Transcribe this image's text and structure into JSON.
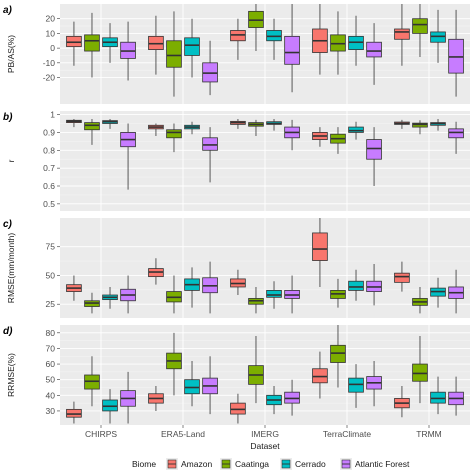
{
  "chart_data": {
    "type": "boxplot",
    "categories": [
      "CHIRPS",
      "ERA5-Land",
      "IMERG",
      "TerraClimate",
      "TRMM"
    ],
    "xlabel": "Dataset",
    "legend": {
      "title": "Biome",
      "position": "bottom",
      "entries": [
        "Amazon",
        "Caatinga",
        "Cerrado",
        "Atlantic Forest"
      ],
      "colors": [
        "#f8766d",
        "#7cae00",
        "#00bfc4",
        "#c77cff"
      ]
    },
    "panels": [
      {
        "tag": "a)",
        "ylabel": "PB/AS(%)",
        "ylim": [
          -38,
          30
        ],
        "yticks": [
          -20,
          -10,
          0,
          10,
          20
        ],
        "boxes": [
          [
            [
              -12,
              1,
              4,
              8,
              18
            ],
            [
              -20,
              -2,
              5,
              9,
              24
            ],
            [
              -10,
              1,
              4,
              7,
              17
            ],
            [
              -22,
              -7,
              -2,
              4,
              18
            ]
          ],
          [
            [
              -18,
              -1,
              3,
              8,
              22
            ],
            [
              -33,
              -13,
              -5,
              5,
              25
            ],
            [
              -20,
              -5,
              2,
              7,
              20
            ],
            [
              -32,
              -23,
              -17,
              -10,
              5
            ]
          ],
          [
            [
              -8,
              5,
              9,
              12,
              20
            ],
            [
              -2,
              14,
              19,
              25,
              30
            ],
            [
              -8,
              5,
              8,
              12,
              20
            ],
            [
              -30,
              -11,
              -3,
              8,
              30
            ]
          ],
          [
            [
              -18,
              -3,
              5,
              13,
              30
            ],
            [
              -18,
              -2,
              3,
              9,
              25
            ],
            [
              -12,
              -1,
              4,
              8,
              22
            ],
            [
              -25,
              -6,
              -2,
              4,
              17
            ]
          ],
          [
            [
              -12,
              6,
              11,
              13,
              30
            ],
            [
              -6,
              10,
              16,
              20,
              30
            ],
            [
              -10,
              4,
              8,
              11,
              26
            ],
            [
              -33,
              -17,
              -6,
              6,
              26
            ]
          ]
        ]
      },
      {
        "tag": "b)",
        "ylabel": "r",
        "ylim": [
          0.46,
          1.02
        ],
        "yticks": [
          0.5,
          0.6,
          0.7,
          0.8,
          0.9,
          1.0
        ],
        "boxes": [
          [
            [
              0.93,
              0.955,
              0.962,
              0.968,
              0.975
            ],
            [
              0.83,
              0.915,
              0.94,
              0.955,
              0.975
            ],
            [
              0.92,
              0.95,
              0.96,
              0.966,
              0.975
            ],
            [
              0.58,
              0.82,
              0.86,
              0.9,
              0.95
            ]
          ],
          [
            [
              0.88,
              0.92,
              0.93,
              0.94,
              0.95
            ],
            [
              0.79,
              0.87,
              0.9,
              0.915,
              0.95
            ],
            [
              0.89,
              0.92,
              0.93,
              0.94,
              0.96
            ],
            [
              0.62,
              0.8,
              0.83,
              0.87,
              0.93
            ]
          ],
          [
            [
              0.92,
              0.945,
              0.955,
              0.962,
              0.975
            ],
            [
              0.88,
              0.935,
              0.945,
              0.955,
              0.97
            ],
            [
              0.91,
              0.945,
              0.95,
              0.96,
              0.975
            ],
            [
              0.8,
              0.87,
              0.9,
              0.93,
              0.97
            ]
          ],
          [
            [
              0.82,
              0.86,
              0.88,
              0.9,
              0.93
            ],
            [
              0.78,
              0.84,
              0.865,
              0.89,
              0.93
            ],
            [
              0.86,
              0.9,
              0.91,
              0.93,
              0.96
            ],
            [
              0.6,
              0.75,
              0.81,
              0.86,
              0.93
            ]
          ],
          [
            [
              0.92,
              0.945,
              0.95,
              0.958,
              0.97
            ],
            [
              0.89,
              0.93,
              0.945,
              0.952,
              0.968
            ],
            [
              0.91,
              0.94,
              0.95,
              0.955,
              0.975
            ],
            [
              0.78,
              0.87,
              0.9,
              0.92,
              0.96
            ]
          ]
        ]
      },
      {
        "tag": "c)",
        "ylabel": "RMSE(mm/month)",
        "ylim": [
          13,
          100
        ],
        "yticks": [
          25,
          50,
          75
        ],
        "boxes": [
          [
            [
              28,
              36,
              39,
              42,
              50
            ],
            [
              17,
              23,
              26,
              28,
              35
            ],
            [
              21,
              29,
              31,
              33,
              40
            ],
            [
              17,
              28,
              33,
              38,
              50
            ]
          ],
          [
            [
              42,
              49,
              53,
              56,
              65
            ],
            [
              17,
              27,
              31,
              36,
              50
            ],
            [
              22,
              37,
              42,
              47,
              57
            ],
            [
              17,
              35,
              41,
              48,
              62
            ]
          ],
          [
            [
              33,
              40,
              43,
              47,
              55
            ],
            [
              17,
              25,
              28,
              30,
              40
            ],
            [
              21,
              31,
              33,
              37,
              45
            ],
            [
              17,
              30,
              33,
              37,
              50
            ]
          ],
          [
            [
              40,
              63,
              73,
              87,
              100
            ],
            [
              22,
              30,
              34,
              37,
              47
            ],
            [
              28,
              37,
              40,
              45,
              55
            ],
            [
              24,
              36,
              40,
              45,
              60
            ]
          ],
          [
            [
              36,
              44,
              49,
              52,
              62
            ],
            [
              17,
              24,
              27,
              30,
              40
            ],
            [
              22,
              32,
              36,
              39,
              48
            ],
            [
              17,
              30,
              35,
              40,
              55
            ]
          ]
        ]
      },
      {
        "tag": "d)",
        "ylabel": "RRMSE(%)",
        "ylim": [
          21,
          85
        ],
        "yticks": [
          30,
          40,
          50,
          60,
          70,
          80
        ],
        "boxes": [
          [
            [
              22,
              26,
              28,
              31,
              36
            ],
            [
              33,
              44,
              49,
              53,
              65
            ],
            [
              22,
              30,
              33,
              37,
              44
            ],
            [
              22,
              33,
              38,
              43,
              55
            ]
          ],
          [
            [
              30,
              35,
              38,
              41,
              46
            ],
            [
              40,
              57,
              62,
              67,
              80
            ],
            [
              33,
              41,
              45,
              50,
              62
            ],
            [
              28,
              41,
              46,
              51,
              65
            ]
          ],
          [
            [
              22,
              28,
              31,
              35,
              41
            ],
            [
              35,
              47,
              53,
              59,
              78
            ],
            [
              28,
              34,
              37,
              40,
              46
            ],
            [
              27,
              35,
              38,
              42,
              50
            ]
          ],
          [
            [
              38,
              48,
              52,
              57,
              68
            ],
            [
              45,
              61,
              67,
              72,
              85
            ],
            [
              32,
              42,
              47,
              51,
              60
            ],
            [
              33,
              44,
              48,
              52,
              62
            ]
          ],
          [
            [
              26,
              32,
              35,
              38,
              46
            ],
            [
              35,
              49,
              54,
              60,
              78
            ],
            [
              28,
              35,
              38,
              42,
              52
            ],
            [
              27,
              34,
              38,
              42,
              52
            ]
          ]
        ]
      }
    ]
  }
}
